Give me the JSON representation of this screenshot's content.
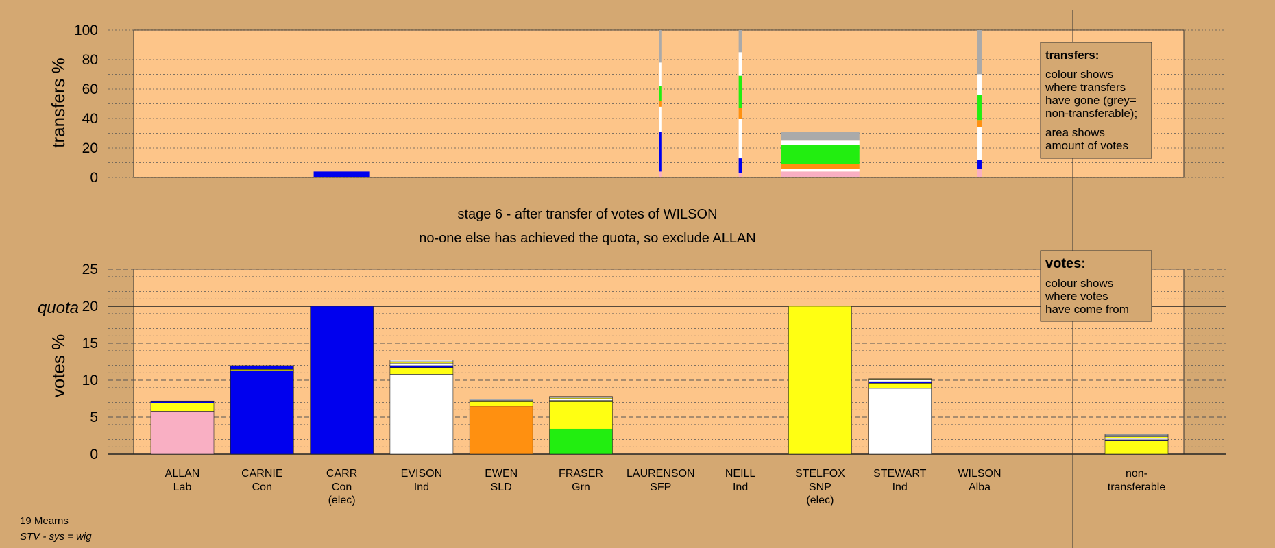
{
  "colors": {
    "background": "#d4a872",
    "panel": "#fdc589",
    "Lab": "#f9afc3",
    "Con": "#0000ee",
    "Ind": "#ffffff",
    "SNP": "#ffff12",
    "SLD": "#ff9010",
    "Grn": "#22ee10",
    "nt": "#aaaaaa",
    "Alba": "#f9afc3"
  },
  "chart_data": [
    {
      "type": "bar",
      "id": "transfers",
      "ylabel": "transfers %",
      "ylim": [
        0,
        100
      ],
      "yticks": [
        "0",
        "20",
        "40",
        "60",
        "80",
        "100"
      ],
      "categories": [
        "ALLAN",
        "CARNIE",
        "CARR",
        "EVISON",
        "EWEN",
        "FRASER",
        "LAURENSON",
        "NEILL",
        "STELFOX",
        "STEWART",
        "WILSON",
        "non-transferable"
      ],
      "bars": [
        {
          "category": "CARR",
          "width_share": 0.83,
          "segments": [
            {
              "from": "Con",
              "value": 4
            }
          ]
        },
        {
          "category": "LAURENSON",
          "width_share": 0.04,
          "segments": [
            {
              "from": "Lab",
              "value": 4
            },
            {
              "from": "Con",
              "value": 27
            },
            {
              "from": "Ind",
              "value": 17
            },
            {
              "from": "SLD",
              "value": 4
            },
            {
              "from": "Grn",
              "value": 10
            },
            {
              "from": "Ind",
              "value": 16
            },
            {
              "from": "nt",
              "value": 22
            }
          ]
        },
        {
          "category": "NEILL",
          "width_share": 0.05,
          "segments": [
            {
              "from": "Lab",
              "value": 3
            },
            {
              "from": "Con",
              "value": 10
            },
            {
              "from": "Ind",
              "value": 27
            },
            {
              "from": "SLD",
              "value": 7
            },
            {
              "from": "Grn",
              "value": 22
            },
            {
              "from": "Ind",
              "value": 16
            },
            {
              "from": "nt",
              "value": 15
            }
          ]
        },
        {
          "category": "STELFOX",
          "width_share": 1.16,
          "segments": [
            {
              "from": "Lab",
              "value": 4
            },
            {
              "from": "Ind",
              "value": 2
            },
            {
              "from": "SLD",
              "value": 3
            },
            {
              "from": "Grn",
              "value": 13
            },
            {
              "from": "Ind",
              "value": 3
            },
            {
              "from": "nt",
              "value": 6
            }
          ]
        },
        {
          "category": "WILSON",
          "width_share": 0.06,
          "segments": [
            {
              "from": "Alba",
              "value": 6
            },
            {
              "from": "Con",
              "value": 6
            },
            {
              "from": "Ind",
              "value": 22
            },
            {
              "from": "SLD",
              "value": 5
            },
            {
              "from": "Grn",
              "value": 17
            },
            {
              "from": "Ind",
              "value": 14
            },
            {
              "from": "nt",
              "value": 30
            }
          ]
        }
      ]
    },
    {
      "type": "bar",
      "id": "votes",
      "ylabel": "votes %",
      "ylim": [
        0,
        25
      ],
      "yticks": [
        "0",
        "5",
        "10",
        "15",
        "20",
        "25"
      ],
      "quota": 20,
      "quota_label": "quota",
      "categories": [
        "ALLAN",
        "CARNIE",
        "CARR",
        "EVISON",
        "EWEN",
        "FRASER",
        "LAURENSON",
        "NEILL",
        "STELFOX",
        "STEWART",
        "WILSON",
        "non-transferable"
      ],
      "series_order": [
        "own",
        "SNP",
        "Con",
        "Ind",
        "Grn",
        "Lab",
        "SLD",
        "Alba"
      ],
      "bars": [
        {
          "category": "ALLAN",
          "segments": [
            {
              "from": "Lab",
              "value": 5.8
            },
            {
              "from": "SNP",
              "value": 1.1
            },
            {
              "from": "Con",
              "value": 0.2
            },
            {
              "from": "Ind",
              "value": 0.1
            }
          ]
        },
        {
          "category": "CARNIE",
          "segments": [
            {
              "from": "Con",
              "value": 10.7
            },
            {
              "from": "Con",
              "value": 0.6
            },
            {
              "from": "SNP",
              "value": 0.15
            },
            {
              "from": "Con",
              "value": 0.5
            }
          ]
        },
        {
          "category": "CARR",
          "segments": [
            {
              "from": "Con",
              "value": 20.0
            }
          ]
        },
        {
          "category": "EVISON",
          "segments": [
            {
              "from": "Ind",
              "value": 10.8
            },
            {
              "from": "SNP",
              "value": 0.9
            },
            {
              "from": "Con",
              "value": 0.25
            },
            {
              "from": "Ind",
              "value": 0.35
            },
            {
              "from": "SNP",
              "value": 0.2
            },
            {
              "from": "Ind",
              "value": 0.2
            }
          ]
        },
        {
          "category": "EWEN",
          "segments": [
            {
              "from": "SLD",
              "value": 6.5
            },
            {
              "from": "SNP",
              "value": 0.6
            },
            {
              "from": "Con",
              "value": 0.15
            },
            {
              "from": "Ind",
              "value": 0.15
            }
          ]
        },
        {
          "category": "FRASER",
          "segments": [
            {
              "from": "Grn",
              "value": 3.4
            },
            {
              "from": "SNP",
              "value": 3.7
            },
            {
              "from": "Con",
              "value": 0.15
            },
            {
              "from": "Ind",
              "value": 0.2
            },
            {
              "from": "SNP",
              "value": 0.15
            },
            {
              "from": "Ind",
              "value": 0.2
            }
          ]
        },
        {
          "category": "LAURENSON",
          "segments": []
        },
        {
          "category": "NEILL",
          "segments": []
        },
        {
          "category": "STELFOX",
          "segments": [
            {
              "from": "SNP",
              "value": 20.0
            }
          ]
        },
        {
          "category": "STEWART",
          "segments": [
            {
              "from": "Ind",
              "value": 8.9
            },
            {
              "from": "SNP",
              "value": 0.7
            },
            {
              "from": "Con",
              "value": 0.2
            },
            {
              "from": "Ind",
              "value": 0.25
            },
            {
              "from": "SNP",
              "value": 0.15
            }
          ]
        },
        {
          "category": "WILSON",
          "segments": []
        },
        {
          "category": "non-transferable",
          "segments": [
            {
              "from": "SNP",
              "value": 1.8
            },
            {
              "from": "Con",
              "value": 0.15
            },
            {
              "from": "Ind",
              "value": 0.2
            },
            {
              "from": "SNP",
              "value": 0.2
            },
            {
              "from": "Ind",
              "value": 0.15
            },
            {
              "from": "nt",
              "value": 0.2
            }
          ]
        }
      ]
    }
  ],
  "candidates": [
    {
      "name": "ALLAN",
      "party": "Lab",
      "note": ""
    },
    {
      "name": "CARNIE",
      "party": "Con",
      "note": ""
    },
    {
      "name": "CARR",
      "party": "Con",
      "note": "(elec)"
    },
    {
      "name": "EVISON",
      "party": "Ind",
      "note": ""
    },
    {
      "name": "EWEN",
      "party": "SLD",
      "note": ""
    },
    {
      "name": "FRASER",
      "party": "Grn",
      "note": ""
    },
    {
      "name": "LAURENSON",
      "party": "SFP",
      "note": ""
    },
    {
      "name": "NEILL",
      "party": "Ind",
      "note": ""
    },
    {
      "name": "STELFOX",
      "party": "SNP",
      "note": "(elec)"
    },
    {
      "name": "STEWART",
      "party": "Ind",
      "note": ""
    },
    {
      "name": "WILSON",
      "party": "Alba",
      "note": ""
    },
    {
      "name": "non-",
      "party": "transferable",
      "note": ""
    }
  ],
  "stage": {
    "line1": "stage 6 - after transfer of votes of WILSON",
    "line2": "no-one else has achieved the quota, so exclude ALLAN"
  },
  "legends": {
    "transfers": {
      "title": "transfers:",
      "lines": [
        "colour shows",
        "where transfers",
        "have gone (grey=",
        "non-transferable);",
        "area shows",
        "amount of votes"
      ]
    },
    "votes": {
      "title": "votes:",
      "lines": [
        "colour shows",
        "where votes",
        "have come from"
      ]
    }
  },
  "footer": {
    "ward": "19 Mearns",
    "system": "STV - sys = wig"
  }
}
